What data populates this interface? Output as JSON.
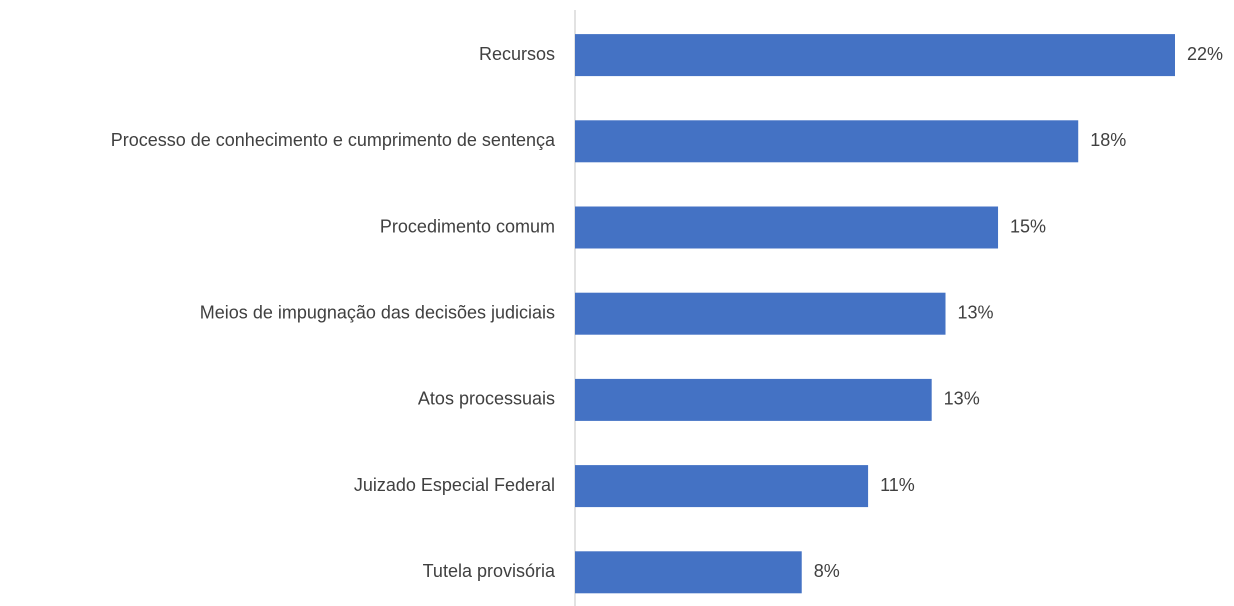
{
  "chart_data": {
    "type": "bar",
    "orientation": "horizontal",
    "categories": [
      "Recursos",
      "Processo de conhecimento e cumprimento de sentença",
      "Procedimento comum",
      "Meios de impugnação das decisões judiciais",
      "Atos processuais",
      "Juizado Especial Federal",
      "Tutela provisória"
    ],
    "values": [
      21.7,
      18.2,
      15.3,
      13.4,
      12.9,
      10.6,
      8.2
    ],
    "value_labels": [
      "22%",
      "18%",
      "15%",
      "13%",
      "13%",
      "11%",
      "8%"
    ],
    "color": "#4472c4"
  }
}
